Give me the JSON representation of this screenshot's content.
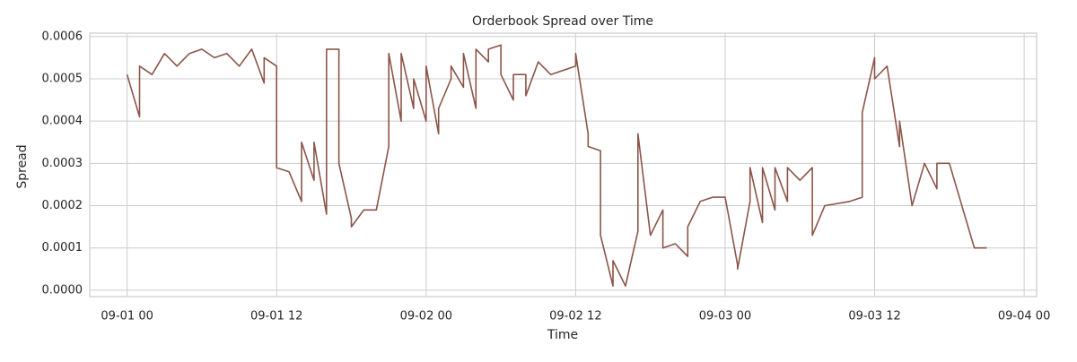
{
  "chart_data": {
    "type": "line",
    "title": "Orderbook Spread over Time",
    "x_label": "Time",
    "y_label": "Spread",
    "x": [
      "09-01 00",
      "09-01 01",
      "09-01 01",
      "09-01 02",
      "09-01 03",
      "09-01 04",
      "09-01 05",
      "09-01 06",
      "09-01 07",
      "09-01 08",
      "09-01 09",
      "09-01 10",
      "09-01 11",
      "09-01 11",
      "09-01 12",
      "09-01 12",
      "09-01 13",
      "09-01 14",
      "09-01 14",
      "09-01 15",
      "09-01 15",
      "09-01 16",
      "09-01 16",
      "09-01 17",
      "09-01 17",
      "09-01 18",
      "09-01 18",
      "09-01 19",
      "09-01 20",
      "09-01 21",
      "09-01 21",
      "09-01 22",
      "09-01 22",
      "09-01 23",
      "09-01 23",
      "09-02 00",
      "09-02 00",
      "09-02 01",
      "09-02 01",
      "09-02 02",
      "09-02 02",
      "09-02 03",
      "09-02 03",
      "09-02 04",
      "09-02 04",
      "09-02 05",
      "09-02 05",
      "09-02 06",
      "09-02 06",
      "09-02 07",
      "09-02 07",
      "09-02 08",
      "09-02 08",
      "09-02 09",
      "09-02 10",
      "09-02 12",
      "09-02 12",
      "09-02 13",
      "09-02 13",
      "09-02 14",
      "09-02 14",
      "09-02 15",
      "09-02 15",
      "09-02 16",
      "09-02 17",
      "09-02 17",
      "09-02 18",
      "09-02 19",
      "09-02 19",
      "09-02 20",
      "09-02 21",
      "09-02 21",
      "09-02 22",
      "09-02 23",
      "09-03 00",
      "09-03 01",
      "09-03 01",
      "09-03 02",
      "09-03 02",
      "09-03 03",
      "09-03 03",
      "09-03 04",
      "09-03 04",
      "09-03 05",
      "09-03 05",
      "09-03 06",
      "09-03 07",
      "09-03 07",
      "09-03 08",
      "09-03 10",
      "09-03 11",
      "09-03 11",
      "09-03 12",
      "09-03 12",
      "09-03 13",
      "09-03 14",
      "09-03 14",
      "09-03 15",
      "09-03 16",
      "09-03 17",
      "09-03 17",
      "09-03 18",
      "09-03 20",
      "09-03 21"
    ],
    "series": [
      {
        "name": "Spread",
        "color": "#8b5449",
        "values": [
          0.00051,
          0.00041,
          0.00053,
          0.00051,
          0.00056,
          0.00053,
          0.00056,
          0.00057,
          0.00055,
          0.00056,
          0.00053,
          0.00057,
          0.00049,
          0.00055,
          0.00053,
          0.00029,
          0.00028,
          0.00021,
          0.00035,
          0.00026,
          0.00035,
          0.00018,
          0.00057,
          0.00057,
          0.0003,
          0.00017,
          0.00015,
          0.00019,
          0.00019,
          0.00034,
          0.00056,
          0.0004,
          0.00056,
          0.00043,
          0.0005,
          0.0004,
          0.00053,
          0.00037,
          0.00043,
          0.0005,
          0.00053,
          0.00048,
          0.00056,
          0.00043,
          0.00057,
          0.00054,
          0.00057,
          0.00058,
          0.00051,
          0.00045,
          0.00051,
          0.00051,
          0.00046,
          0.00054,
          0.00051,
          0.00053,
          0.00056,
          0.00037,
          0.00034,
          0.00033,
          0.00013,
          1e-05,
          7e-05,
          1e-05,
          0.00014,
          0.00037,
          0.00013,
          0.00019,
          0.0001,
          0.00011,
          8e-05,
          0.00015,
          0.00021,
          0.00022,
          0.00022,
          6e-05,
          5e-05,
          0.00021,
          0.00029,
          0.00016,
          0.00029,
          0.00019,
          0.00029,
          0.00021,
          0.00029,
          0.00026,
          0.00029,
          0.00013,
          0.0002,
          0.00021,
          0.00022,
          0.00042,
          0.00055,
          0.0005,
          0.00053,
          0.00034,
          0.0004,
          0.0002,
          0.0003,
          0.00024,
          0.0003,
          0.0003,
          0.0001,
          0.0001
        ]
      }
    ],
    "xlim": [
      "08-31 21",
      "09-04 01"
    ],
    "xticks": [
      "09-01 00",
      "09-01 12",
      "09-02 00",
      "09-02 12",
      "09-03 00",
      "09-03 12",
      "09-04 00"
    ],
    "ylim": [
      -1.5e-05,
      0.000608
    ],
    "yticks": [
      {
        "value": 0,
        "label": "0.0000"
      },
      {
        "value": 0.0001,
        "label": "0.0001"
      },
      {
        "value": 0.0002,
        "label": "0.0002"
      },
      {
        "value": 0.0003,
        "label": "0.0003"
      },
      {
        "value": 0.0004,
        "label": "0.0004"
      },
      {
        "value": 0.0005,
        "label": "0.0005"
      },
      {
        "value": 0.0006,
        "label": "0.0006"
      }
    ],
    "grid": true
  }
}
